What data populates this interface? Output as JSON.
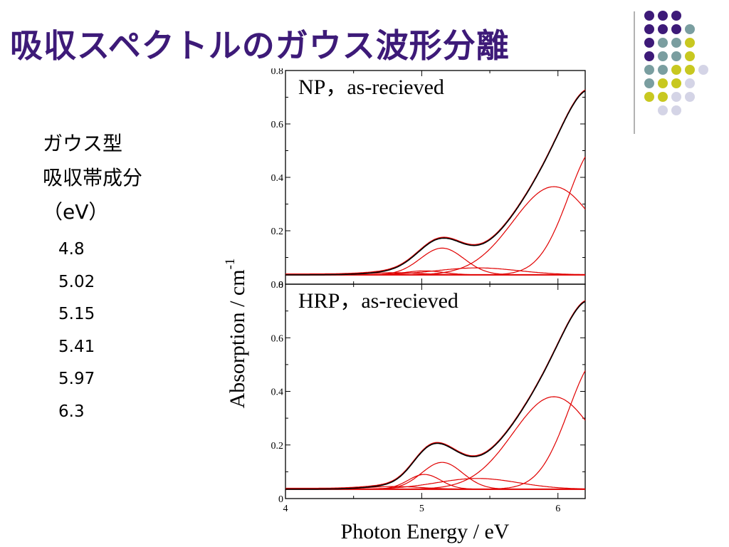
{
  "slide": {
    "title": "吸収スペクトルのガウス波形分離",
    "side_lines": [
      "ガウス型",
      "吸収帯成分",
      "（eV）"
    ],
    "gaussian_centers_ev": [
      "4.8",
      "5.02",
      "5.15",
      "5.41",
      "5.97",
      "6.3"
    ]
  },
  "colors": {
    "title": "#3d1a78",
    "dot_purple": "#3d1a78",
    "dot_teal": "#7a9ea0",
    "dot_yellow": "#c8c820",
    "dot_lavender": "#d4d4e6",
    "fit_curve": "#000000",
    "component_curves": "#e00000"
  },
  "chart_data": {
    "type": "line",
    "xlabel": "Photon Energy / eV",
    "ylabel": "Absorption / cm",
    "ylabel_superscript": "-1",
    "xlim": [
      4,
      6.2
    ],
    "ylim": [
      0,
      0.8
    ],
    "xticks": [
      "4",
      "5",
      "6"
    ],
    "yticks": [
      "0",
      "0.2",
      "0.4",
      "0.6",
      "0.8"
    ],
    "panels": [
      {
        "label": "NP，as-recieved",
        "baseline": 0.035,
        "components": [
          {
            "center": 4.8,
            "amp": 0.008,
            "sigma": 0.2
          },
          {
            "center": 5.02,
            "amp": 0.015,
            "sigma": 0.14
          },
          {
            "center": 5.15,
            "amp": 0.1,
            "sigma": 0.16
          },
          {
            "center": 5.41,
            "amp": 0.026,
            "sigma": 0.3
          },
          {
            "center": 5.97,
            "amp": 0.33,
            "sigma": 0.3
          },
          {
            "center": 6.3,
            "amp": 0.49,
            "sigma": 0.22
          }
        ]
      },
      {
        "label": "HRP，as-recieved",
        "baseline": 0.035,
        "components": [
          {
            "center": 4.8,
            "amp": 0.01,
            "sigma": 0.2
          },
          {
            "center": 5.02,
            "amp": 0.055,
            "sigma": 0.12
          },
          {
            "center": 5.15,
            "amp": 0.1,
            "sigma": 0.15
          },
          {
            "center": 5.41,
            "amp": 0.04,
            "sigma": 0.3
          },
          {
            "center": 5.97,
            "amp": 0.345,
            "sigma": 0.3
          },
          {
            "center": 6.3,
            "amp": 0.49,
            "sigma": 0.22
          }
        ]
      }
    ]
  }
}
